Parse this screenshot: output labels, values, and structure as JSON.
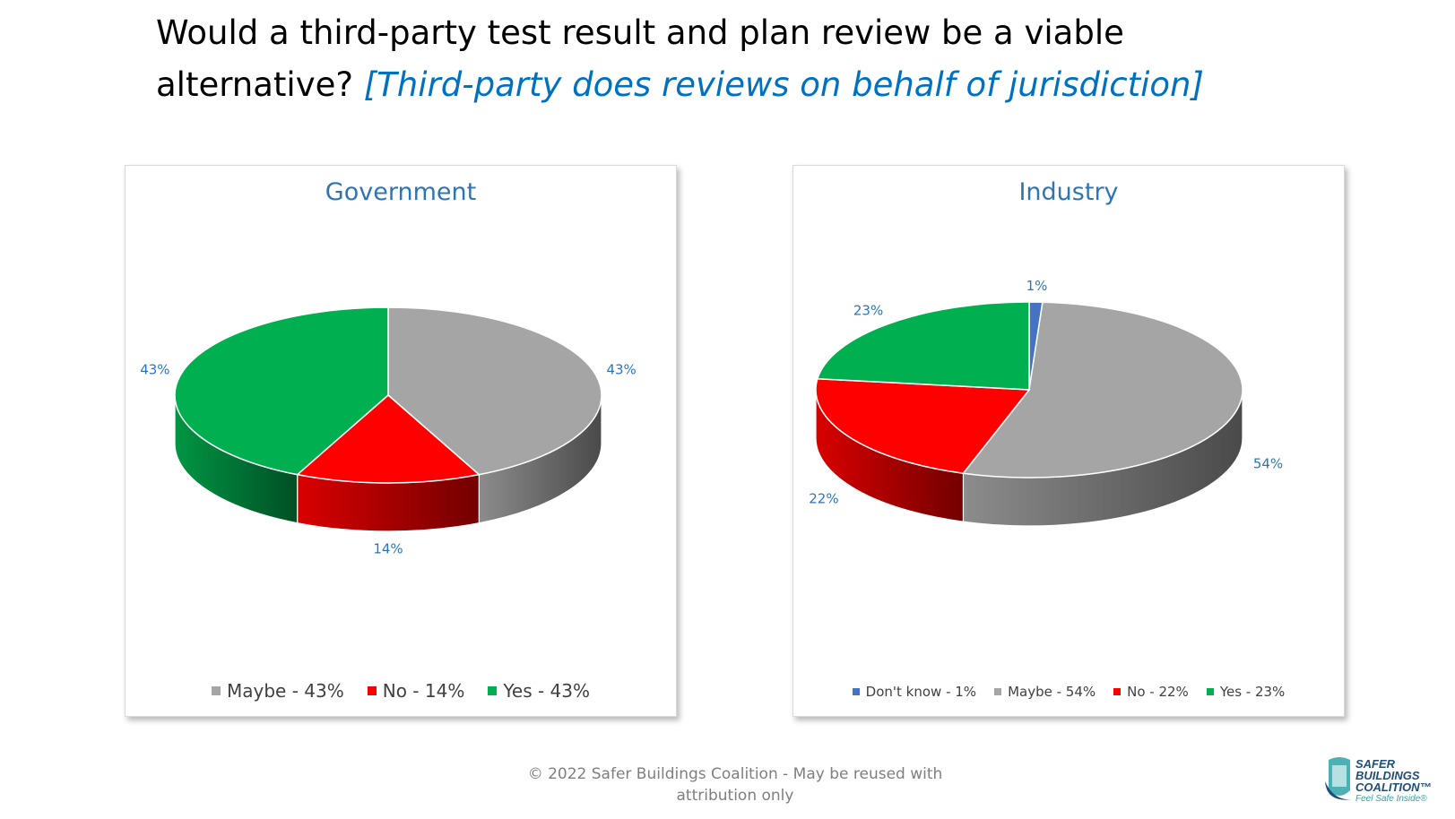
{
  "slide": {
    "title": "Would a third-party test result and plan review be a viable alternative?",
    "subtitle": "[Third-party does reviews on behalf of jurisdiction]",
    "footer": "© 2022 Safer Buildings Coalition - May be reused with attribution only"
  },
  "logo": {
    "line1": "SAFER",
    "line2": "BUILDINGS",
    "line3": "COALITION",
    "tm": "™",
    "tagline": "Feel Safe Inside®"
  },
  "colors": {
    "title_text": "#000000",
    "subtitle_text": "#0070c0",
    "chart_title": "#2e75b6",
    "data_label": "#2e75b6",
    "legend_text": "#404040",
    "footer_text": "#7f7f7f"
  },
  "chart_data": [
    {
      "type": "pie",
      "title": "Government",
      "legend_position": "bottom",
      "categories": [
        "Maybe",
        "No",
        "Yes"
      ],
      "values": [
        43,
        14,
        43
      ],
      "unit": "%",
      "data_labels": [
        "43%",
        "14%",
        "43%"
      ],
      "legend_labels": [
        "Maybe  - 43%",
        "No  - 14%",
        "Yes  - 43%"
      ],
      "colors": [
        "#a5a5a5",
        "#ff0000",
        "#00b050"
      ]
    },
    {
      "type": "pie",
      "title": "Industry",
      "legend_position": "bottom",
      "categories": [
        "Don't know",
        "Maybe",
        "No",
        "Yes"
      ],
      "values": [
        1,
        54,
        22,
        23
      ],
      "unit": "%",
      "data_labels": [
        "1%",
        "54%",
        "22%",
        "23%"
      ],
      "legend_labels": [
        "Don't know  - 1%",
        "Maybe  - 54%",
        "No  - 22%",
        "Yes  - 23%"
      ],
      "colors": [
        "#4472c4",
        "#a5a5a5",
        "#ff0000",
        "#00b050"
      ]
    }
  ]
}
